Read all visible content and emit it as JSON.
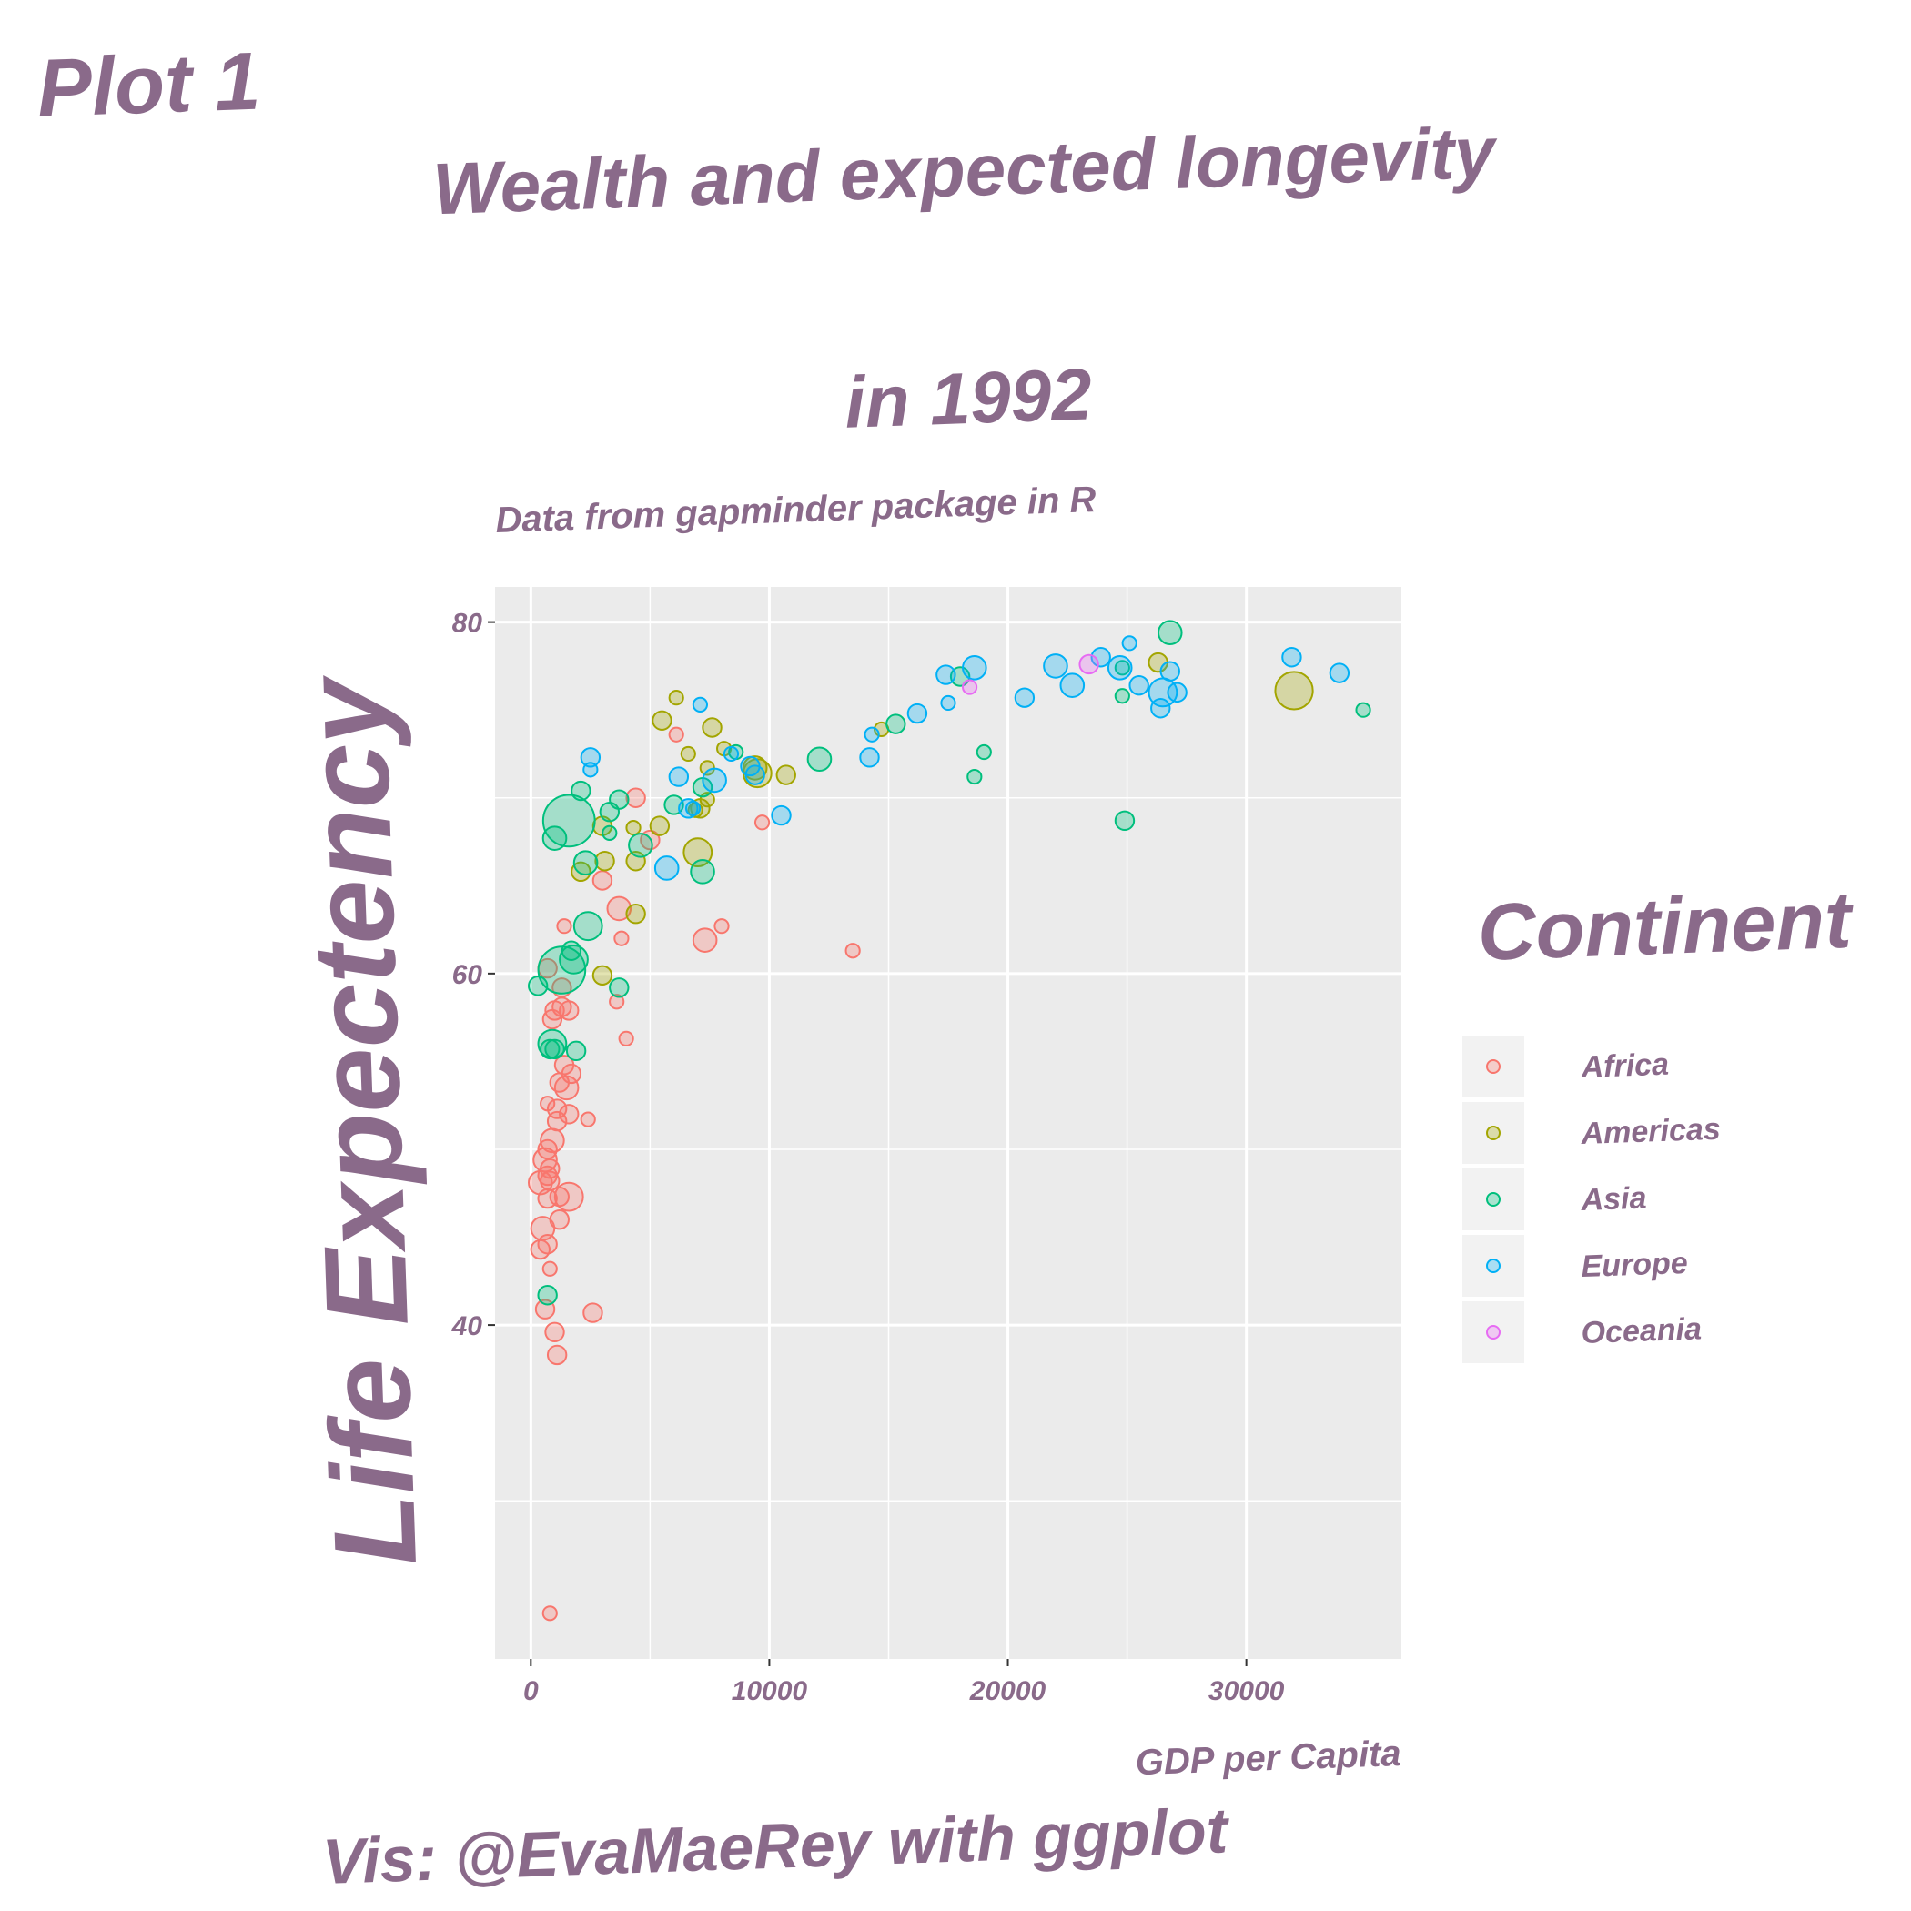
{
  "plot_tag": "Plot 1",
  "caption": "Vis: @EvaMaeRey with ggplot",
  "colors": {
    "text": "#8a6a8a",
    "panel_bg": "#ebebeb",
    "grid": "#ffffff",
    "Africa": "#F8766D",
    "Americas": "#A3A500",
    "Asia": "#00BF7D",
    "Europe": "#00B0F6",
    "Oceania": "#E76BF3"
  },
  "chart_data": {
    "type": "scatter",
    "title_line1": "Wealth and expected longevity",
    "title_line2": "in 1992",
    "subtitle": "Data from gapminder package in R",
    "xlabel": "GDP per Capita",
    "ylabel": "Life Expectency",
    "xlim": [
      -1500,
      36500
    ],
    "ylim": [
      21,
      82
    ],
    "x_ticks": [
      0,
      10000,
      20000,
      30000
    ],
    "y_ticks": [
      40,
      60,
      80
    ],
    "grid": true,
    "legend_title": "Continent",
    "legend_position": "right",
    "series": [
      {
        "name": "Africa",
        "points": [
          [
            800,
            23.6,
            1
          ],
          [
            1400,
            62.7,
            1
          ],
          [
            6100,
            73.6,
            1
          ],
          [
            4400,
            70.0,
            2
          ],
          [
            5000,
            67.6,
            2
          ],
          [
            3000,
            65.3,
            2
          ],
          [
            3700,
            63.7,
            3
          ],
          [
            7300,
            61.9,
            3
          ],
          [
            8000,
            62.7,
            1
          ],
          [
            13500,
            61.3,
            1
          ],
          [
            9700,
            68.6,
            1
          ],
          [
            3800,
            62.0,
            1
          ],
          [
            3600,
            58.4,
            1
          ],
          [
            4000,
            56.3,
            1
          ],
          [
            700,
            60.3,
            2
          ],
          [
            1300,
            59.2,
            2
          ],
          [
            1000,
            57.9,
            2
          ],
          [
            1300,
            58.1,
            2
          ],
          [
            900,
            57.4,
            2
          ],
          [
            1600,
            57.9,
            2
          ],
          [
            1400,
            54.8,
            2
          ],
          [
            1700,
            54.3,
            2
          ],
          [
            1500,
            53.5,
            3
          ],
          [
            1200,
            53.8,
            2
          ],
          [
            2400,
            51.7,
            1
          ],
          [
            700,
            52.6,
            1
          ],
          [
            1100,
            52.3,
            2
          ],
          [
            1600,
            52.0,
            2
          ],
          [
            1100,
            51.6,
            2
          ],
          [
            900,
            50.5,
            3
          ],
          [
            700,
            50.0,
            2
          ],
          [
            600,
            49.4,
            3
          ],
          [
            800,
            48.9,
            2
          ],
          [
            700,
            48.5,
            2
          ],
          [
            800,
            48.2,
            2
          ],
          [
            400,
            48.1,
            3
          ],
          [
            700,
            47.2,
            2
          ],
          [
            1200,
            47.3,
            2
          ],
          [
            1600,
            47.3,
            4
          ],
          [
            1200,
            46.0,
            2
          ],
          [
            500,
            45.5,
            3
          ],
          [
            700,
            44.6,
            2
          ],
          [
            400,
            44.3,
            2
          ],
          [
            800,
            43.2,
            1
          ],
          [
            600,
            40.9,
            2
          ],
          [
            2600,
            40.7,
            2
          ],
          [
            1000,
            39.6,
            2
          ],
          [
            1100,
            38.3,
            2
          ]
        ]
      },
      {
        "name": "Americas",
        "points": [
          [
            6100,
            75.7,
            1
          ],
          [
            5500,
            74.4,
            2
          ],
          [
            6600,
            72.5,
            1
          ],
          [
            7600,
            74.0,
            2
          ],
          [
            8100,
            72.8,
            1
          ],
          [
            9400,
            71.7,
            3
          ],
          [
            9500,
            71.4,
            4
          ],
          [
            10700,
            71.3,
            2
          ],
          [
            7400,
            71.7,
            1
          ],
          [
            7400,
            69.9,
            1
          ],
          [
            7100,
            69.4,
            2
          ],
          [
            6900,
            69.3,
            1
          ],
          [
            5400,
            68.4,
            2
          ],
          [
            4300,
            68.3,
            1
          ],
          [
            3000,
            68.4,
            2
          ],
          [
            3100,
            66.4,
            2
          ],
          [
            2100,
            65.8,
            2
          ],
          [
            4400,
            66.4,
            2
          ],
          [
            4400,
            63.4,
            2
          ],
          [
            3000,
            59.9,
            2
          ],
          [
            7000,
            66.9,
            4
          ],
          [
            14700,
            73.9,
            1
          ],
          [
            26300,
            77.7,
            2
          ],
          [
            32000,
            76.1,
            6
          ]
        ]
      },
      {
        "name": "Asia",
        "points": [
          [
            26800,
            79.4,
            3
          ],
          [
            34900,
            75.0,
            1
          ],
          [
            24800,
            75.8,
            1
          ],
          [
            24800,
            77.4,
            1
          ],
          [
            19000,
            72.6,
            1
          ],
          [
            18600,
            71.2,
            1
          ],
          [
            24900,
            68.7,
            2
          ],
          [
            15300,
            74.2,
            2
          ],
          [
            12100,
            72.2,
            3
          ],
          [
            8600,
            72.6,
            1
          ],
          [
            6000,
            69.6,
            2
          ],
          [
            7200,
            70.6,
            2
          ],
          [
            7200,
            65.8,
            3
          ],
          [
            2100,
            70.4,
            2
          ],
          [
            3700,
            69.9,
            2
          ],
          [
            3300,
            69.2,
            2
          ],
          [
            3300,
            68.0,
            1
          ],
          [
            1600,
            68.7,
            9
          ],
          [
            1000,
            67.7,
            3
          ],
          [
            2300,
            66.3,
            3
          ],
          [
            4600,
            67.3,
            3
          ],
          [
            2400,
            62.7,
            4
          ],
          [
            1300,
            60.2,
            8
          ],
          [
            1800,
            60.8,
            4
          ],
          [
            1700,
            61.3,
            2
          ],
          [
            300,
            59.3,
            2
          ],
          [
            3700,
            59.2,
            2
          ],
          [
            900,
            56.0,
            4
          ],
          [
            1900,
            55.6,
            2
          ],
          [
            800,
            55.7,
            2
          ],
          [
            700,
            41.7,
            2
          ],
          [
            1000,
            55.7,
            2
          ],
          [
            18000,
            76.9,
            2
          ]
        ]
      },
      {
        "name": "Europe",
        "points": [
          [
            2500,
            72.3,
            2
          ],
          [
            2500,
            71.6,
            1
          ],
          [
            6200,
            71.2,
            2
          ],
          [
            7700,
            71.0,
            3
          ],
          [
            9200,
            71.8,
            2
          ],
          [
            9400,
            71.3,
            2
          ],
          [
            5700,
            66.0,
            3
          ],
          [
            6600,
            69.4,
            2
          ],
          [
            6800,
            69.4,
            1
          ],
          [
            10500,
            69.0,
            2
          ],
          [
            14300,
            73.6,
            1
          ],
          [
            14200,
            72.3,
            2
          ],
          [
            16200,
            74.8,
            2
          ],
          [
            17500,
            75.4,
            1
          ],
          [
            17400,
            77.0,
            2
          ],
          [
            18600,
            77.4,
            3
          ],
          [
            20700,
            75.7,
            2
          ],
          [
            22000,
            77.5,
            3
          ],
          [
            22700,
            76.4,
            3
          ],
          [
            23900,
            78.0,
            2
          ],
          [
            24700,
            77.4,
            3
          ],
          [
            25100,
            78.8,
            1
          ],
          [
            25500,
            76.4,
            2
          ],
          [
            26400,
            75.1,
            2
          ],
          [
            26500,
            76.0,
            4
          ],
          [
            26800,
            77.2,
            2
          ],
          [
            27100,
            76.0,
            2
          ],
          [
            31900,
            78.0,
            2
          ],
          [
            33900,
            77.1,
            2
          ],
          [
            7100,
            75.3,
            1
          ],
          [
            8400,
            72.5,
            1
          ]
        ]
      },
      {
        "name": "Oceania",
        "points": [
          [
            23400,
            77.6,
            2
          ],
          [
            18400,
            76.3,
            1
          ]
        ]
      }
    ]
  }
}
